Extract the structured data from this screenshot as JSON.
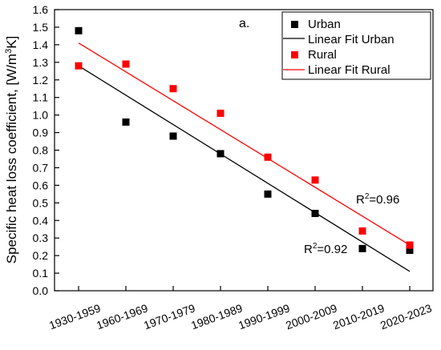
{
  "chart_data": {
    "type": "scatter",
    "panel_label": "a.",
    "ylabel_main": "Specific heat loss coefficient, [W/m",
    "ylabel_sup": "3",
    "ylabel_end": "K]",
    "categories": [
      "1930-1959",
      "1960-1969",
      "1970-1979",
      "1980-1989",
      "1990-1999",
      "2000-2009",
      "2010-2019",
      "2020-2023"
    ],
    "ylim": [
      0.0,
      1.6
    ],
    "yticks": [
      "0.0",
      "0.1",
      "0.2",
      "0.3",
      "0.4",
      "0.5",
      "0.6",
      "0.7",
      "0.8",
      "0.9",
      "1.0",
      "1.1",
      "1.2",
      "1.3",
      "1.4",
      "1.5",
      "1.6"
    ],
    "grid": false,
    "legend_position": "top-right",
    "series": [
      {
        "name": "Urban",
        "marker": "square",
        "color": "#000000",
        "values": [
          1.48,
          0.96,
          0.88,
          0.78,
          0.55,
          0.44,
          0.24,
          0.23
        ]
      },
      {
        "name": "Rural",
        "marker": "square",
        "color": "#ff0000",
        "values": [
          1.28,
          1.29,
          1.15,
          1.01,
          0.76,
          0.63,
          0.34,
          0.26
        ]
      }
    ],
    "fits": [
      {
        "name": "Linear Fit Urban",
        "color": "#000000",
        "start": 1.28,
        "end": 0.11,
        "r2_base": "R",
        "r2_sup": "2",
        "r2_value": "=0.92"
      },
      {
        "name": "Linear Fit Rural",
        "color": "#ff0000",
        "start": 1.41,
        "end": 0.26,
        "r2_base": "R",
        "r2_sup": "2",
        "r2_value": "=0.96"
      }
    ]
  }
}
